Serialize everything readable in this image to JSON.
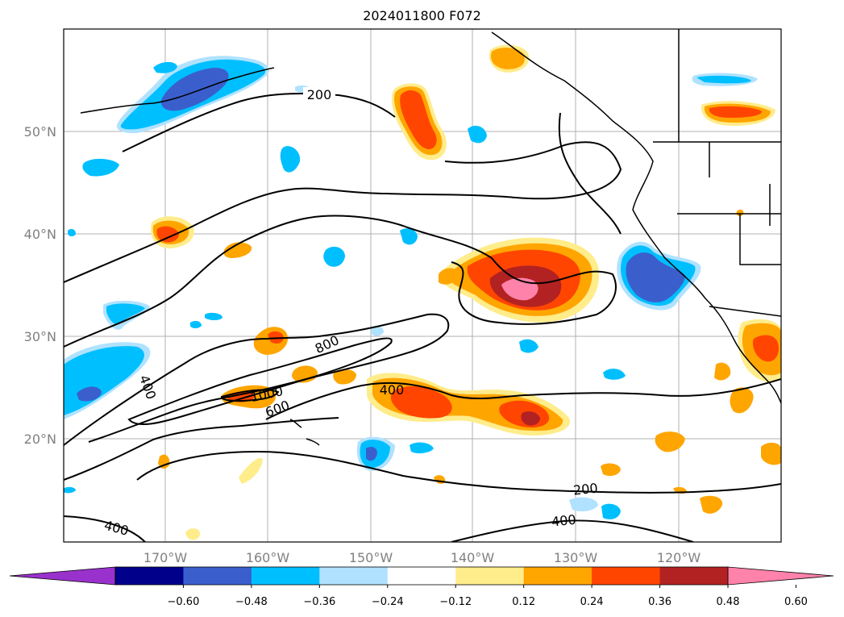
{
  "title": "2024011800 F072",
  "latitude_labels": [
    "50°N",
    "40°N",
    "30°N",
    "20°N"
  ],
  "longitude_labels": [
    "170°W",
    "160°W",
    "150°W",
    "140°W",
    "130°W",
    "120°W"
  ],
  "contour_labels": [
    "200",
    "400",
    "600",
    "800",
    "1000",
    "200",
    "400",
    "400",
    "400"
  ],
  "colorbar": {
    "ticks": [
      "−0.60",
      "−0.48",
      "−0.36",
      "−0.24",
      "−0.12",
      "0.12",
      "0.24",
      "0.36",
      "0.48",
      "0.60"
    ],
    "colors": [
      "#9932cc",
      "#00008b",
      "#3a5fcd",
      "#00bfff",
      "#b0e2ff",
      "#ffffff",
      "#ffec8b",
      "#ffa500",
      "#ff4500",
      "#b22222",
      "#ff82ab"
    ]
  },
  "palette": {
    "pos_light": "#ffec8b",
    "pos_orange": "#ffa500",
    "pos_red": "#ff4500",
    "pos_dark": "#b22222",
    "pos_pink": "#ff82ab",
    "neg_light": "#b0e2ff",
    "neg_cyan": "#00bfff",
    "neg_blue": "#3a5fcd"
  }
}
